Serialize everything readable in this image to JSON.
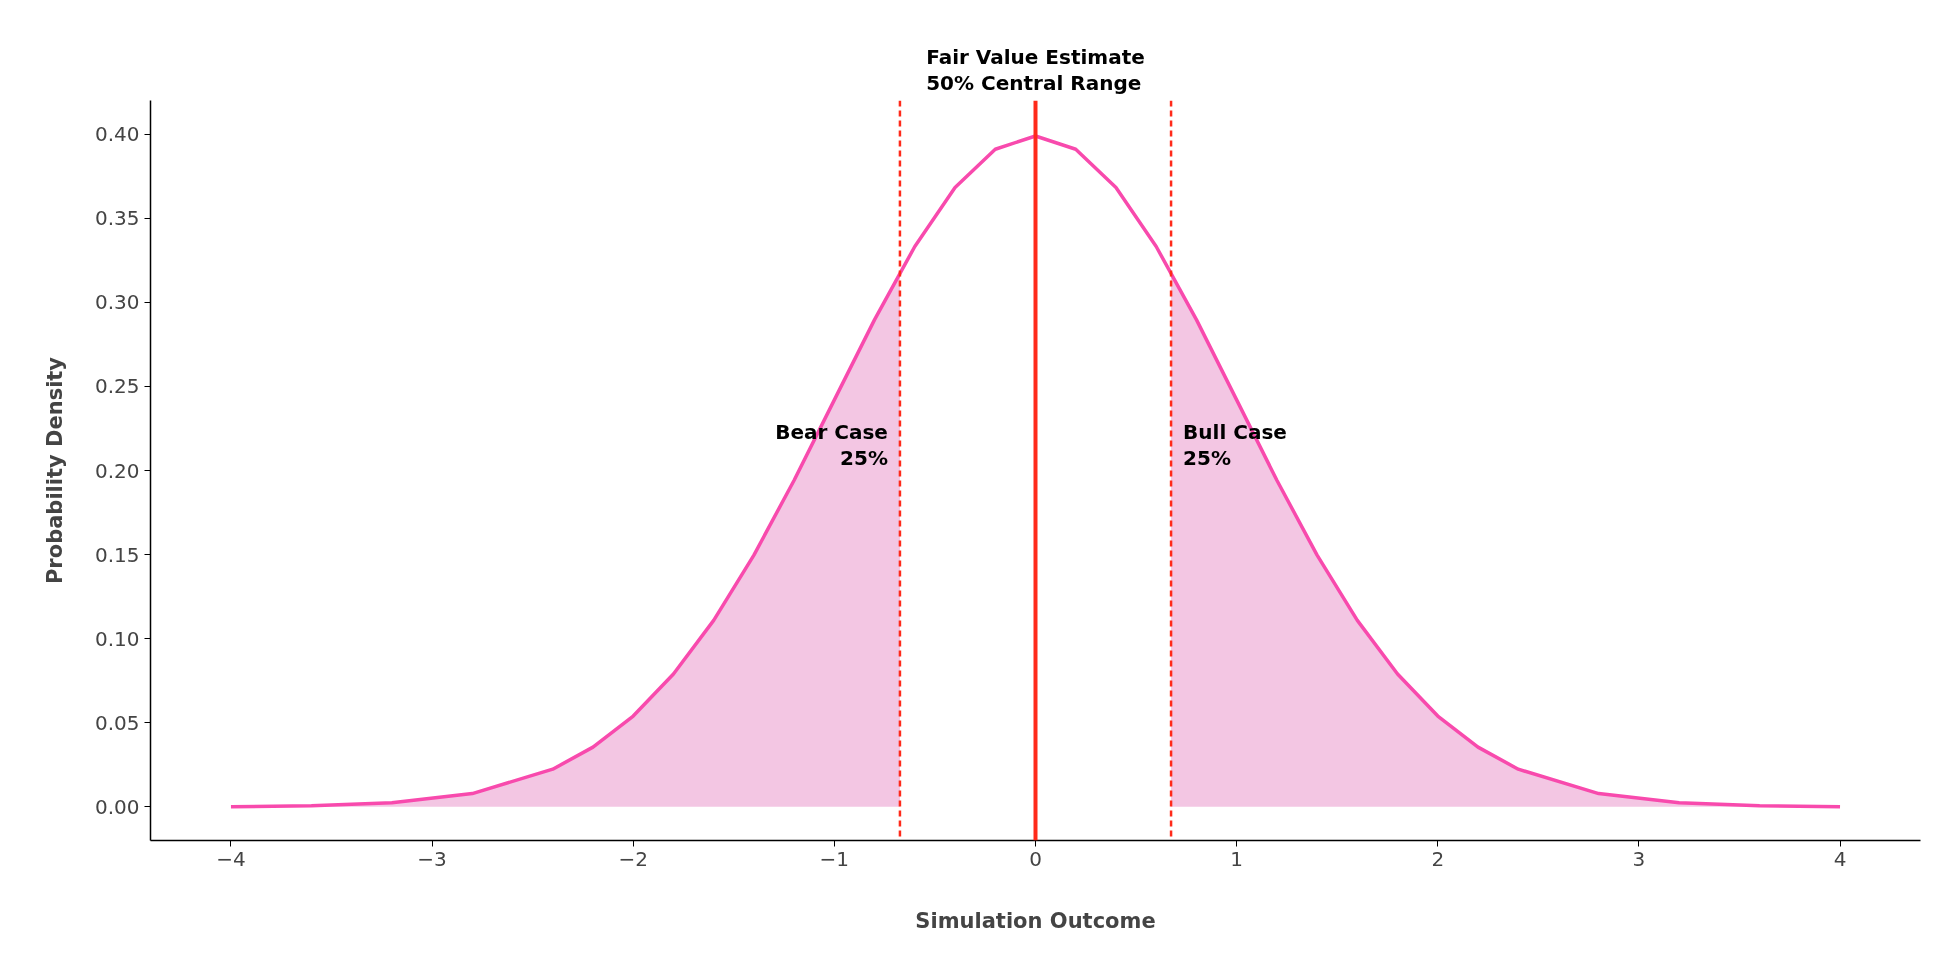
{
  "chart_data": {
    "type": "line",
    "xlabel": "Simulation Outcome",
    "ylabel": "Probability Density",
    "xlim": [
      -4.4,
      4.4
    ],
    "xticks": [
      {
        "value": -4,
        "label": "−4"
      },
      {
        "value": -3,
        "label": "−3"
      },
      {
        "value": -2,
        "label": "−2"
      },
      {
        "value": -1,
        "label": "−1"
      },
      0,
      1,
      2,
      3,
      4
    ],
    "ylim": [
      -0.02,
      0.42
    ],
    "yticks": [
      {
        "value": 0,
        "label": "0.00"
      },
      {
        "value": 0.05,
        "label": "0.05"
      },
      {
        "value": 0.1,
        "label": "0.10"
      },
      {
        "value": 0.15,
        "label": "0.15"
      },
      {
        "value": 0.2,
        "label": "0.20"
      },
      {
        "value": 0.25,
        "label": "0.25"
      },
      {
        "value": 0.3,
        "label": "0.30"
      },
      {
        "value": 0.35,
        "label": "0.35"
      },
      {
        "value": 0.4,
        "label": "0.40"
      }
    ],
    "grid": false,
    "legend": false,
    "marker": "none",
    "line_style": "solid",
    "series": [
      {
        "type": "area",
        "color": "#f3c6e3",
        "x": [
          -4,
          -3.6,
          -3.2,
          -2.8,
          -2.4,
          -2.2,
          -2.0,
          -1.8,
          -1.6,
          -1.4,
          -1.2,
          -1.0,
          -0.8,
          -0.674
        ],
        "values": [
          0.0001,
          0.0006,
          0.0024,
          0.0079,
          0.0224,
          0.0355,
          0.054,
          0.079,
          0.1109,
          0.1497,
          0.1942,
          0.242,
          0.2897,
          0.3178
        ]
      },
      {
        "type": "area",
        "color": "#f3c6e3",
        "x": [
          0.674,
          0.8,
          1.0,
          1.2,
          1.4,
          1.6,
          1.8,
          2.0,
          2.2,
          2.4,
          2.8,
          3.2,
          3.6,
          4
        ],
        "values": [
          0.3178,
          0.2897,
          0.242,
          0.1942,
          0.1497,
          0.1109,
          0.079,
          0.054,
          0.0355,
          0.0224,
          0.0079,
          0.0024,
          0.0006,
          0.0001
        ]
      },
      {
        "color": "#f84aad",
        "x": [
          -4,
          -3.6,
          -3.2,
          -2.8,
          -2.4,
          -2.2,
          -2.0,
          -1.8,
          -1.6,
          -1.4,
          -1.2,
          -1.0,
          -0.8,
          -0.6,
          -0.4,
          -0.2,
          0,
          0.2,
          0.4,
          0.6,
          0.8,
          1.0,
          1.2,
          1.4,
          1.6,
          1.8,
          2.0,
          2.2,
          2.4,
          2.8,
          3.2,
          3.6,
          4
        ],
        "values": [
          0.0001,
          0.0006,
          0.0024,
          0.0079,
          0.0224,
          0.0355,
          0.054,
          0.079,
          0.1109,
          0.1497,
          0.1942,
          0.242,
          0.2897,
          0.3332,
          0.3683,
          0.391,
          0.3989,
          0.391,
          0.3683,
          0.3332,
          0.2897,
          0.242,
          0.1942,
          0.1497,
          0.1109,
          0.079,
          0.054,
          0.0355,
          0.0224,
          0.0079,
          0.0024,
          0.0006,
          0.0001
        ]
      }
    ],
    "ref_lines": [
      {
        "axis": "x",
        "value": 0,
        "label": "Fair Value Estimate\n50% Central Range",
        "color": "#ff2a1a",
        "line_style": "solid"
      },
      {
        "axis": "x",
        "value": -0.674,
        "label": null,
        "color": "#ff2a1a",
        "line_style": "dashed"
      },
      {
        "axis": "x",
        "value": 0.674,
        "label": null,
        "color": "#ff2a1a",
        "line_style": "dashed"
      }
    ],
    "annotations": [
      "Bear Case\n25%",
      "Bull Case\n25%"
    ]
  }
}
